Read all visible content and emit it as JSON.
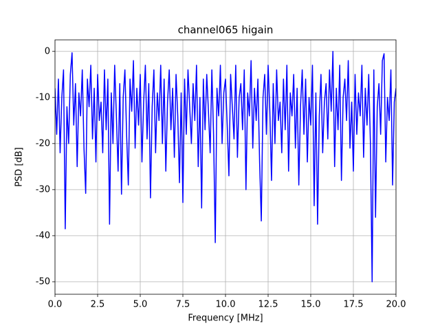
{
  "chart_data": {
    "type": "line",
    "title": "channel065 higain",
    "x_label": "Frequency [MHz]",
    "y_label": "PSD [dB]",
    "color": "#0000ff",
    "grid": true,
    "xlim": [
      0,
      20
    ],
    "ylim": [
      -52.7,
      2.5
    ],
    "xticks": [
      {
        "value": 0,
        "label": "0.0"
      },
      {
        "value": 2.5,
        "label": "2.5"
      },
      {
        "value": 5,
        "label": "5.0"
      },
      {
        "value": 7.5,
        "label": "7.5"
      },
      {
        "value": 10,
        "label": "10.0"
      },
      {
        "value": 12.5,
        "label": "12.5"
      },
      {
        "value": 15,
        "label": "15.0"
      },
      {
        "value": 17.5,
        "label": "17.5"
      },
      {
        "value": 20,
        "label": "20.0"
      }
    ],
    "yticks": [
      0,
      -10,
      -20,
      -30,
      -40,
      -50
    ],
    "x": [
      0,
      0.1,
      0.2,
      0.3,
      0.4,
      0.5,
      0.6,
      0.7,
      0.8,
      0.9,
      1,
      1.1,
      1.2,
      1.3,
      1.4,
      1.5,
      1.6,
      1.7,
      1.8,
      1.9,
      2,
      2.1,
      2.2,
      2.3,
      2.4,
      2.5,
      2.6,
      2.7,
      2.8,
      2.9,
      3,
      3.1,
      3.2,
      3.3,
      3.4,
      3.5,
      3.6,
      3.7,
      3.8,
      3.9,
      4,
      4.1,
      4.2,
      4.3,
      4.4,
      4.5,
      4.6,
      4.7,
      4.8,
      4.9,
      5,
      5.1,
      5.2,
      5.3,
      5.4,
      5.5,
      5.6,
      5.7,
      5.8,
      5.9,
      6,
      6.1,
      6.2,
      6.3,
      6.4,
      6.5,
      6.6,
      6.7,
      6.8,
      6.9,
      7,
      7.1,
      7.2,
      7.3,
      7.4,
      7.5,
      7.6,
      7.7,
      7.8,
      7.9,
      8,
      8.1,
      8.2,
      8.3,
      8.4,
      8.5,
      8.6,
      8.7,
      8.8,
      8.9,
      9,
      9.1,
      9.2,
      9.3,
      9.4,
      9.5,
      9.6,
      9.7,
      9.8,
      9.9,
      10,
      10.1,
      10.2,
      10.3,
      10.4,
      10.5,
      10.6,
      10.7,
      10.8,
      10.9,
      11,
      11.1,
      11.2,
      11.3,
      11.4,
      11.5,
      11.6,
      11.7,
      11.8,
      11.9,
      12,
      12.1,
      12.2,
      12.3,
      12.4,
      12.5,
      12.6,
      12.7,
      12.8,
      12.9,
      13,
      13.1,
      13.2,
      13.3,
      13.4,
      13.5,
      13.6,
      13.7,
      13.8,
      13.9,
      14,
      14.1,
      14.2,
      14.3,
      14.4,
      14.5,
      14.6,
      14.7,
      14.8,
      14.9,
      15,
      15.1,
      15.2,
      15.3,
      15.4,
      15.5,
      15.6,
      15.7,
      15.8,
      15.9,
      16,
      16.1,
      16.2,
      16.3,
      16.4,
      16.5,
      16.6,
      16.7,
      16.8,
      16.9,
      17,
      17.1,
      17.2,
      17.3,
      17.4,
      17.5,
      17.6,
      17.7,
      17.8,
      17.9,
      18,
      18.1,
      18.2,
      18.3,
      18.4,
      18.5,
      18.6,
      18.7,
      18.8,
      18.9,
      19,
      19.1,
      19.2,
      19.3,
      19.4,
      19.5,
      19.6,
      19.7,
      19.8,
      19.9,
      20
    ],
    "values": [
      -8,
      -18,
      -6,
      -22,
      -10,
      -4,
      -38.5,
      -12,
      -20,
      -5,
      -0.3,
      -16,
      -7,
      -25,
      -9,
      -14,
      -4,
      -21,
      -30.8,
      -6,
      -12,
      -3,
      -19,
      -8,
      -24,
      -5,
      -15,
      -11,
      -22,
      -4,
      -17,
      -6,
      -37.5,
      -9,
      -20,
      -3,
      -14,
      -26,
      -7,
      -31,
      -10,
      -4,
      -18,
      -29,
      -6,
      -13,
      -2,
      -21,
      -8,
      -16,
      -5,
      -24,
      -11,
      -3,
      -19,
      -7,
      -31.8,
      -12,
      -4,
      -22,
      -9,
      -15,
      -3,
      -20,
      -6,
      -26,
      -11,
      -4,
      -17,
      -8,
      -23,
      -5,
      -14,
      -28.5,
      -9,
      -32.8,
      -6,
      -18,
      -4,
      -12,
      -20,
      -7,
      -15,
      -3,
      -25,
      -10,
      -34,
      -6,
      -17,
      -5,
      -13,
      -22,
      -4,
      -18,
      -41.5,
      -8,
      -14,
      -3,
      -20,
      -9,
      -6,
      -16,
      -27,
      -5,
      -12,
      -19,
      -3,
      -23,
      -10,
      -7,
      -17,
      -4,
      -30,
      -9,
      -14,
      -2,
      -21,
      -8,
      -15,
      -6,
      -24,
      -36.8,
      -10,
      -5,
      -18,
      -3,
      -13,
      -28,
      -7,
      -20,
      -4,
      -15,
      -11,
      -22,
      -6,
      -17,
      -3,
      -26,
      -9,
      -14,
      -5,
      -21,
      -8,
      -29,
      -12,
      -4,
      -18,
      -6,
      -24,
      -10,
      -16,
      -3,
      -33.5,
      -9,
      -37.5,
      -14,
      -5,
      -22,
      -11,
      -7,
      -19,
      -4,
      -13,
      0,
      -25,
      -8,
      -17,
      -3,
      -28,
      -10,
      -6,
      -15,
      -2,
      -21,
      -11,
      -26,
      -5,
      -18,
      -9,
      -14,
      -3,
      -23,
      -8,
      -16,
      -5,
      -20,
      -50,
      -4,
      -36,
      -12,
      -7,
      -18,
      -2,
      -0.5,
      -24,
      -10,
      -15,
      -4,
      -29,
      -11,
      -8
    ]
  }
}
